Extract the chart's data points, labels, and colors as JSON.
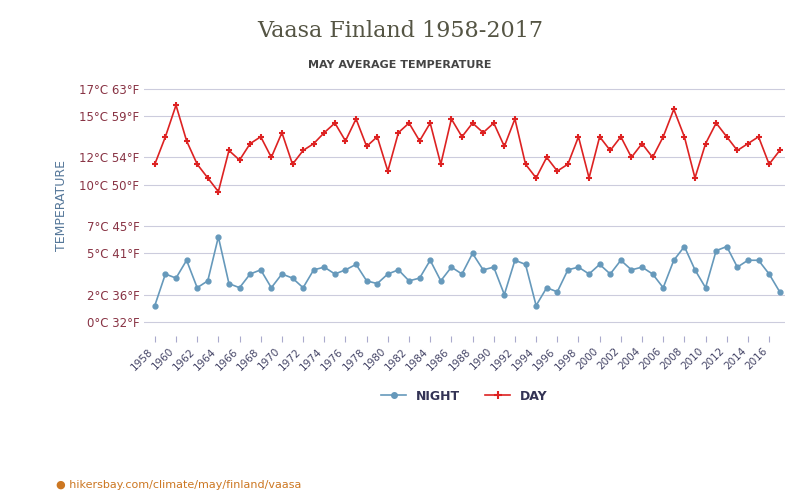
{
  "title": "Vaasa Finland 1958-2017",
  "subtitle": "MAY AVERAGE TEMPERATURE",
  "xlabel_url": "hikersbay.com/climate/may/finland/vaasa",
  "ylabel": "TEMPERATURE",
  "years": [
    1958,
    1959,
    1960,
    1961,
    1962,
    1963,
    1964,
    1965,
    1966,
    1967,
    1968,
    1969,
    1970,
    1971,
    1972,
    1973,
    1974,
    1975,
    1976,
    1977,
    1978,
    1979,
    1980,
    1981,
    1982,
    1983,
    1984,
    1985,
    1986,
    1987,
    1988,
    1989,
    1990,
    1991,
    1992,
    1993,
    1994,
    1995,
    1996,
    1997,
    1998,
    1999,
    2000,
    2001,
    2002,
    2003,
    2004,
    2005,
    2006,
    2007,
    2008,
    2009,
    2010,
    2011,
    2012,
    2013,
    2014,
    2015,
    2016,
    2017
  ],
  "day_temps": [
    11.5,
    13.5,
    15.8,
    13.2,
    11.5,
    10.5,
    9.5,
    12.5,
    11.8,
    13.0,
    13.5,
    12.0,
    13.8,
    11.5,
    12.5,
    13.0,
    13.8,
    14.5,
    13.2,
    14.8,
    12.8,
    13.5,
    11.0,
    13.8,
    14.5,
    13.2,
    14.5,
    11.5,
    14.8,
    13.5,
    14.5,
    13.8,
    14.5,
    12.8,
    14.8,
    11.5,
    10.5,
    12.0,
    11.0,
    11.5,
    13.5,
    10.5,
    13.5,
    12.5,
    13.5,
    12.0,
    13.0,
    12.0,
    13.5,
    15.5,
    13.5,
    10.5,
    13.0,
    14.5,
    13.5,
    12.5,
    13.0,
    13.5,
    11.5,
    12.5
  ],
  "night_temps": [
    1.2,
    3.5,
    3.2,
    4.5,
    2.5,
    3.0,
    6.2,
    2.8,
    2.5,
    3.5,
    3.8,
    2.5,
    3.5,
    3.2,
    2.5,
    3.8,
    4.0,
    3.5,
    3.8,
    4.2,
    3.0,
    2.8,
    3.5,
    3.8,
    3.0,
    3.2,
    4.5,
    3.0,
    4.0,
    3.5,
    5.0,
    3.8,
    4.0,
    2.0,
    4.5,
    4.2,
    1.2,
    2.5,
    2.2,
    3.8,
    4.0,
    3.5,
    4.2,
    3.5,
    4.5,
    3.8,
    4.0,
    3.5,
    2.5,
    4.5,
    5.5,
    3.8,
    2.5,
    5.2,
    5.5,
    4.0,
    4.5,
    4.5,
    3.5,
    2.2
  ],
  "day_color": "#dd2222",
  "night_color": "#6699bb",
  "title_color": "#555544",
  "subtitle_color": "#444444",
  "ylabel_color": "#557799",
  "tick_label_color": "#883344",
  "background_color": "#ffffff",
  "grid_color": "#ccccdd",
  "celsius_ticks": [
    0,
    2,
    5,
    7,
    10,
    12,
    15,
    17
  ],
  "fahrenheit_ticks": [
    32,
    36,
    41,
    45,
    50,
    54,
    59,
    63
  ],
  "ylim_c": [
    -1,
    18
  ],
  "legend_night": "NIGHT",
  "legend_day": "DAY"
}
